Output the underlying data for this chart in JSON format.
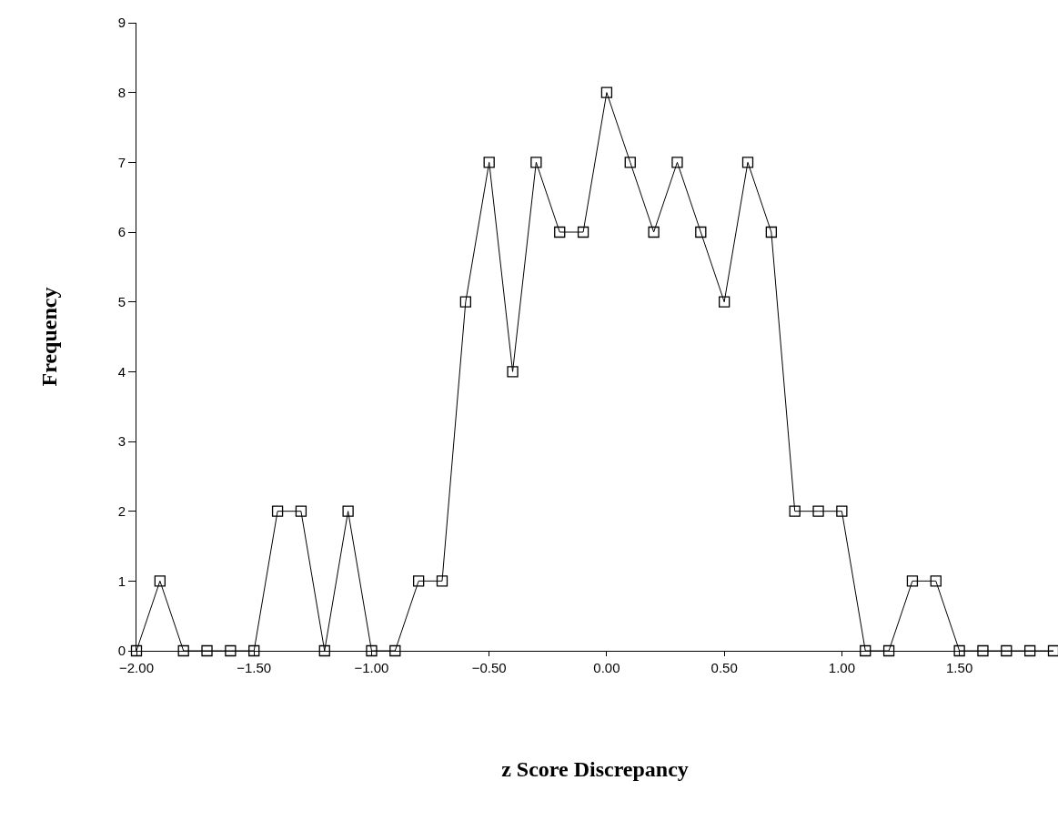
{
  "chart_data": {
    "type": "line",
    "xlabel": "z Score Discrepancy",
    "ylabel": "Frequency",
    "x": [
      -2.0,
      -1.9,
      -1.8,
      -1.7,
      -1.6,
      -1.5,
      -1.4,
      -1.3,
      -1.2,
      -1.1,
      -1.0,
      -0.9,
      -0.8,
      -0.7,
      -0.6,
      -0.5,
      -0.4,
      -0.3,
      -0.2,
      -0.1,
      0.0,
      0.1,
      0.2,
      0.3,
      0.4,
      0.5,
      0.6,
      0.7,
      0.8,
      0.9,
      1.0,
      1.1,
      1.2,
      1.3,
      1.4,
      1.5,
      1.6,
      1.7,
      1.8,
      1.9
    ],
    "values": [
      0,
      1,
      0,
      0,
      0,
      0,
      2,
      2,
      0,
      2,
      0,
      0,
      1,
      1,
      5,
      7,
      4,
      7,
      6,
      6,
      8,
      7,
      6,
      7,
      6,
      5,
      7,
      6,
      2,
      2,
      2,
      0,
      0,
      1,
      1,
      0,
      0,
      0,
      0,
      0
    ],
    "color": "#000000",
    "marker": "square",
    "line_style": "solid",
    "grid": false,
    "xlim": [
      -2.0,
      1.9
    ],
    "ylim": [
      0,
      9
    ],
    "xticks": [
      {
        "value": -2,
        "label": "−2.00"
      },
      {
        "value": -1.5,
        "label": "−1.50"
      },
      {
        "value": -1,
        "label": "−1.00"
      },
      {
        "value": -0.5,
        "label": "−0.50"
      },
      {
        "value": 0,
        "label": "0.00"
      },
      {
        "value": 0.5,
        "label": "0.50"
      },
      {
        "value": 1,
        "label": "1.00"
      },
      {
        "value": 1.5,
        "label": "1.50"
      }
    ],
    "yticks": [
      0,
      1,
      2,
      3,
      4,
      5,
      6,
      7,
      8,
      9
    ]
  }
}
